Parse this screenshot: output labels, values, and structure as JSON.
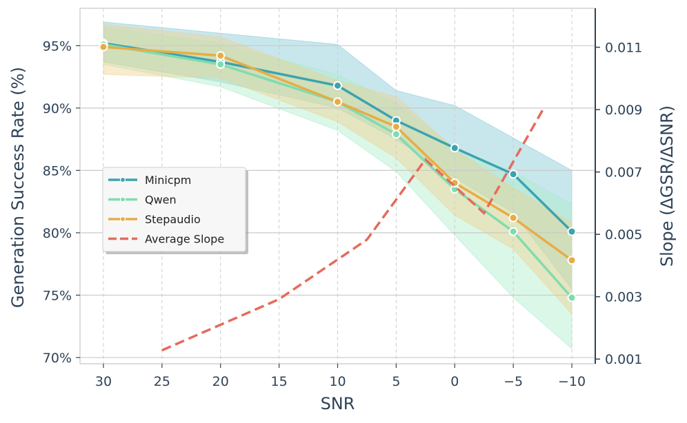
{
  "chart_data": {
    "type": "line",
    "xlabel": "SNR",
    "ylabel": "Generation Success Rate (%)",
    "y2label": "Slope (ΔGSR/ΔSNR)",
    "x_ticks": [
      30,
      25,
      20,
      15,
      10,
      5,
      0,
      -5,
      -10
    ],
    "x_tick_labels": [
      "30",
      "25",
      "20",
      "15",
      "10",
      "5",
      "0",
      "−5",
      "−10"
    ],
    "xlim": [
      32,
      -12
    ],
    "ylim": [
      69.5,
      98
    ],
    "y_ticks": [
      70,
      75,
      80,
      85,
      90,
      95
    ],
    "y_tick_labels": [
      "70%",
      "75%",
      "80%",
      "85%",
      "90%",
      "95%"
    ],
    "y2lim": [
      0.00085,
      0.01225
    ],
    "y2_ticks": [
      0.001,
      0.003,
      0.005,
      0.007,
      0.009,
      0.011
    ],
    "y2_tick_labels": [
      "0.001",
      "0.003",
      "0.005",
      "0.007",
      "0.009",
      "0.011"
    ],
    "x_points": [
      30,
      20,
      10,
      5,
      0,
      -5,
      -10
    ],
    "series": [
      {
        "name": "Minicpm",
        "color": "#3ba3b0",
        "values": [
          95.2,
          93.7,
          91.8,
          89.0,
          86.8,
          84.7,
          80.1
        ],
        "ci_upper": [
          96.9,
          96.0,
          95.1,
          91.4,
          90.2,
          87.6,
          85.0
        ],
        "ci_lower": [
          93.7,
          92.1,
          90.0,
          87.5,
          84.4,
          81.6,
          75.5
        ],
        "band_color": "#7cc6d1"
      },
      {
        "name": "Qwen",
        "color": "#7fdcae",
        "values": [
          95.1,
          93.5,
          90.5,
          87.9,
          83.5,
          80.1,
          74.8
        ],
        "ci_upper": [
          96.5,
          95.2,
          92.7,
          90.4,
          86.8,
          84.9,
          82.3
        ],
        "ci_lower": [
          93.5,
          91.7,
          88.2,
          84.9,
          79.8,
          74.8,
          70.7
        ],
        "band_color": "#a9ebc9"
      },
      {
        "name": "Stepaudio",
        "color": "#e6ad45",
        "values": [
          94.9,
          94.2,
          90.5,
          88.5,
          84.0,
          81.2,
          77.8
        ],
        "ci_upper": [
          96.7,
          95.7,
          92.2,
          90.9,
          86.7,
          83.6,
          80.8
        ],
        "ci_lower": [
          92.7,
          92.4,
          88.9,
          86.0,
          81.4,
          78.7,
          73.5
        ],
        "band_color": "#f1cf8a"
      }
    ],
    "slope_series": {
      "name": "Average Slope",
      "color": "#e46b5c",
      "x": [
        25,
        15,
        7.5,
        2.5,
        -2.5,
        -7.5
      ],
      "values": [
        0.00128,
        0.00292,
        0.00483,
        0.0074,
        0.00568,
        0.00898
      ]
    },
    "legend": {
      "position": "center-left",
      "entries": [
        "Minicpm",
        "Qwen",
        "Stepaudio",
        "Average Slope"
      ]
    },
    "grid": true
  }
}
